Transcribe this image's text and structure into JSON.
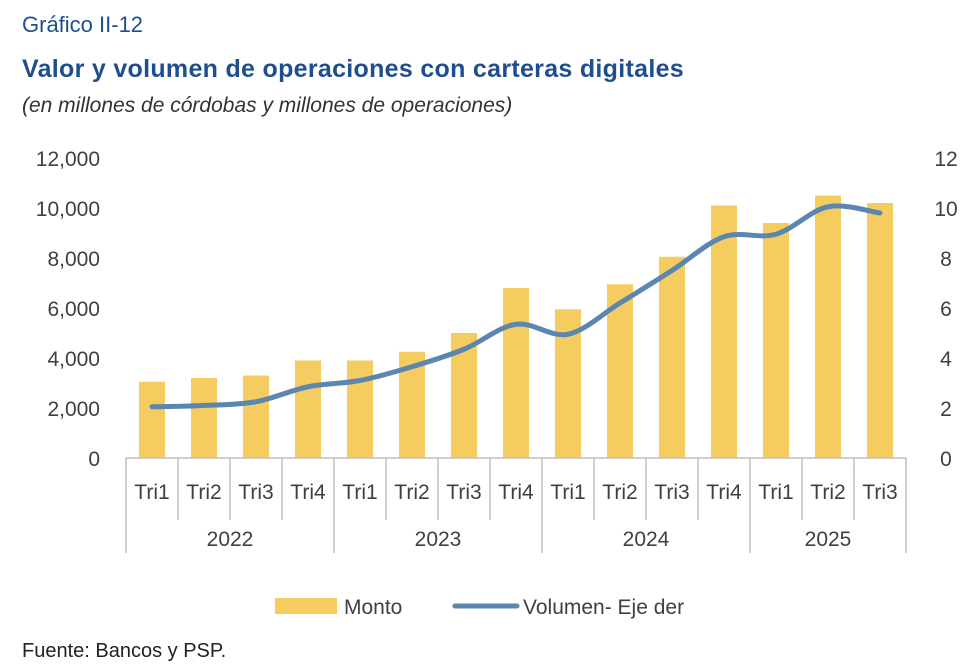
{
  "header": {
    "label": "Gráfico II-12",
    "title": "Valor y volumen de operaciones con carteras digitales",
    "subtitle": "(en millones de córdobas y millones de operaciones)"
  },
  "source": "Fuente: Bancos y PSP.",
  "colors": {
    "bar": "#F5CC5F",
    "line": "#5B86AF",
    "axis": "#BFBFBF",
    "text": "#404040"
  },
  "chart_data": {
    "type": "bar",
    "categories": [
      "Tri1",
      "Tri2",
      "Tri3",
      "Tri4",
      "Tri1",
      "Tri2",
      "Tri3",
      "Tri4",
      "Tri1",
      "Tri2",
      "Tri3",
      "Tri4",
      "Tri1",
      "Tri2",
      "Tri3"
    ],
    "groups": [
      {
        "label": "2022",
        "count": 4
      },
      {
        "label": "2023",
        "count": 4
      },
      {
        "label": "2024",
        "count": 4
      },
      {
        "label": "2025",
        "count": 3
      }
    ],
    "series": [
      {
        "name": "Monto",
        "type": "bar",
        "axis": "left",
        "values": [
          3050,
          3200,
          3300,
          3900,
          3900,
          4250,
          5000,
          6800,
          5950,
          6950,
          8050,
          10100,
          9400,
          10500,
          10200
        ]
      },
      {
        "name": "Volumen- Eje der",
        "type": "line",
        "axis": "right",
        "values": [
          2.05,
          2.1,
          2.25,
          2.85,
          3.1,
          3.65,
          4.35,
          5.35,
          4.95,
          6.2,
          7.5,
          8.85,
          8.95,
          10.05,
          9.8
        ]
      }
    ],
    "yleft": {
      "min": 0,
      "max": 12000,
      "step": 2000,
      "ticks": [
        "0",
        "2,000",
        "4,000",
        "6,000",
        "8,000",
        "10,000",
        "12,000"
      ]
    },
    "yright": {
      "min": 0,
      "max": 12,
      "step": 2,
      "ticks": [
        "0",
        "2",
        "4",
        "6",
        "8",
        "10",
        "12"
      ]
    },
    "legend": {
      "position": "bottom",
      "items": [
        "Monto",
        "Volumen- Eje der"
      ]
    }
  }
}
